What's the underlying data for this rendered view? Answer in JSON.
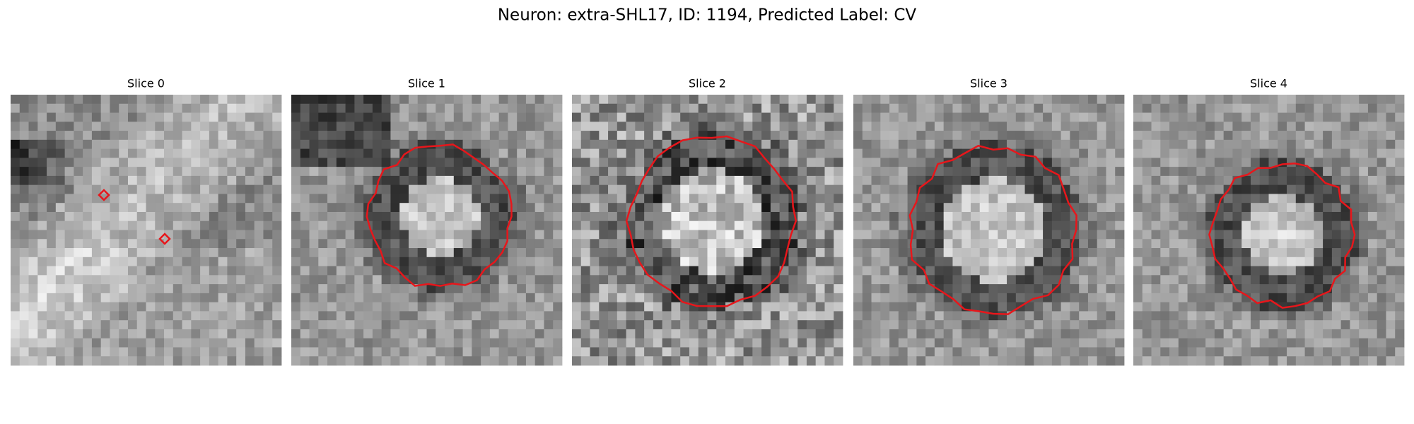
{
  "figure": {
    "title": "Neuron: extra-SHL17, ID: 1194, Predicted Label: CV",
    "panels": [
      {
        "title": "Slice 0"
      },
      {
        "title": "Slice 1"
      },
      {
        "title": "Slice 2"
      },
      {
        "title": "Slice 3"
      },
      {
        "title": "Slice 4"
      }
    ]
  }
}
